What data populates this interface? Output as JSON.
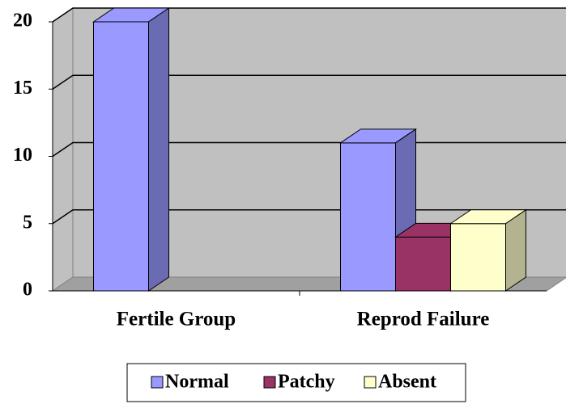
{
  "chart_data": {
    "type": "bar3d",
    "categories": [
      "Fertile Group",
      "Reprod Failure"
    ],
    "series": [
      {
        "name": "Normal",
        "color": "#9999ff",
        "values": [
          20,
          11
        ]
      },
      {
        "name": "Patchy",
        "color": "#993366",
        "values": [
          0,
          4
        ]
      },
      {
        "name": "Absent",
        "color": "#ffffcc",
        "values": [
          0,
          5
        ]
      }
    ],
    "ylim": [
      0,
      20
    ],
    "yticks": [
      0,
      5,
      10,
      15,
      20
    ],
    "grid": true,
    "legend": "bottom"
  }
}
